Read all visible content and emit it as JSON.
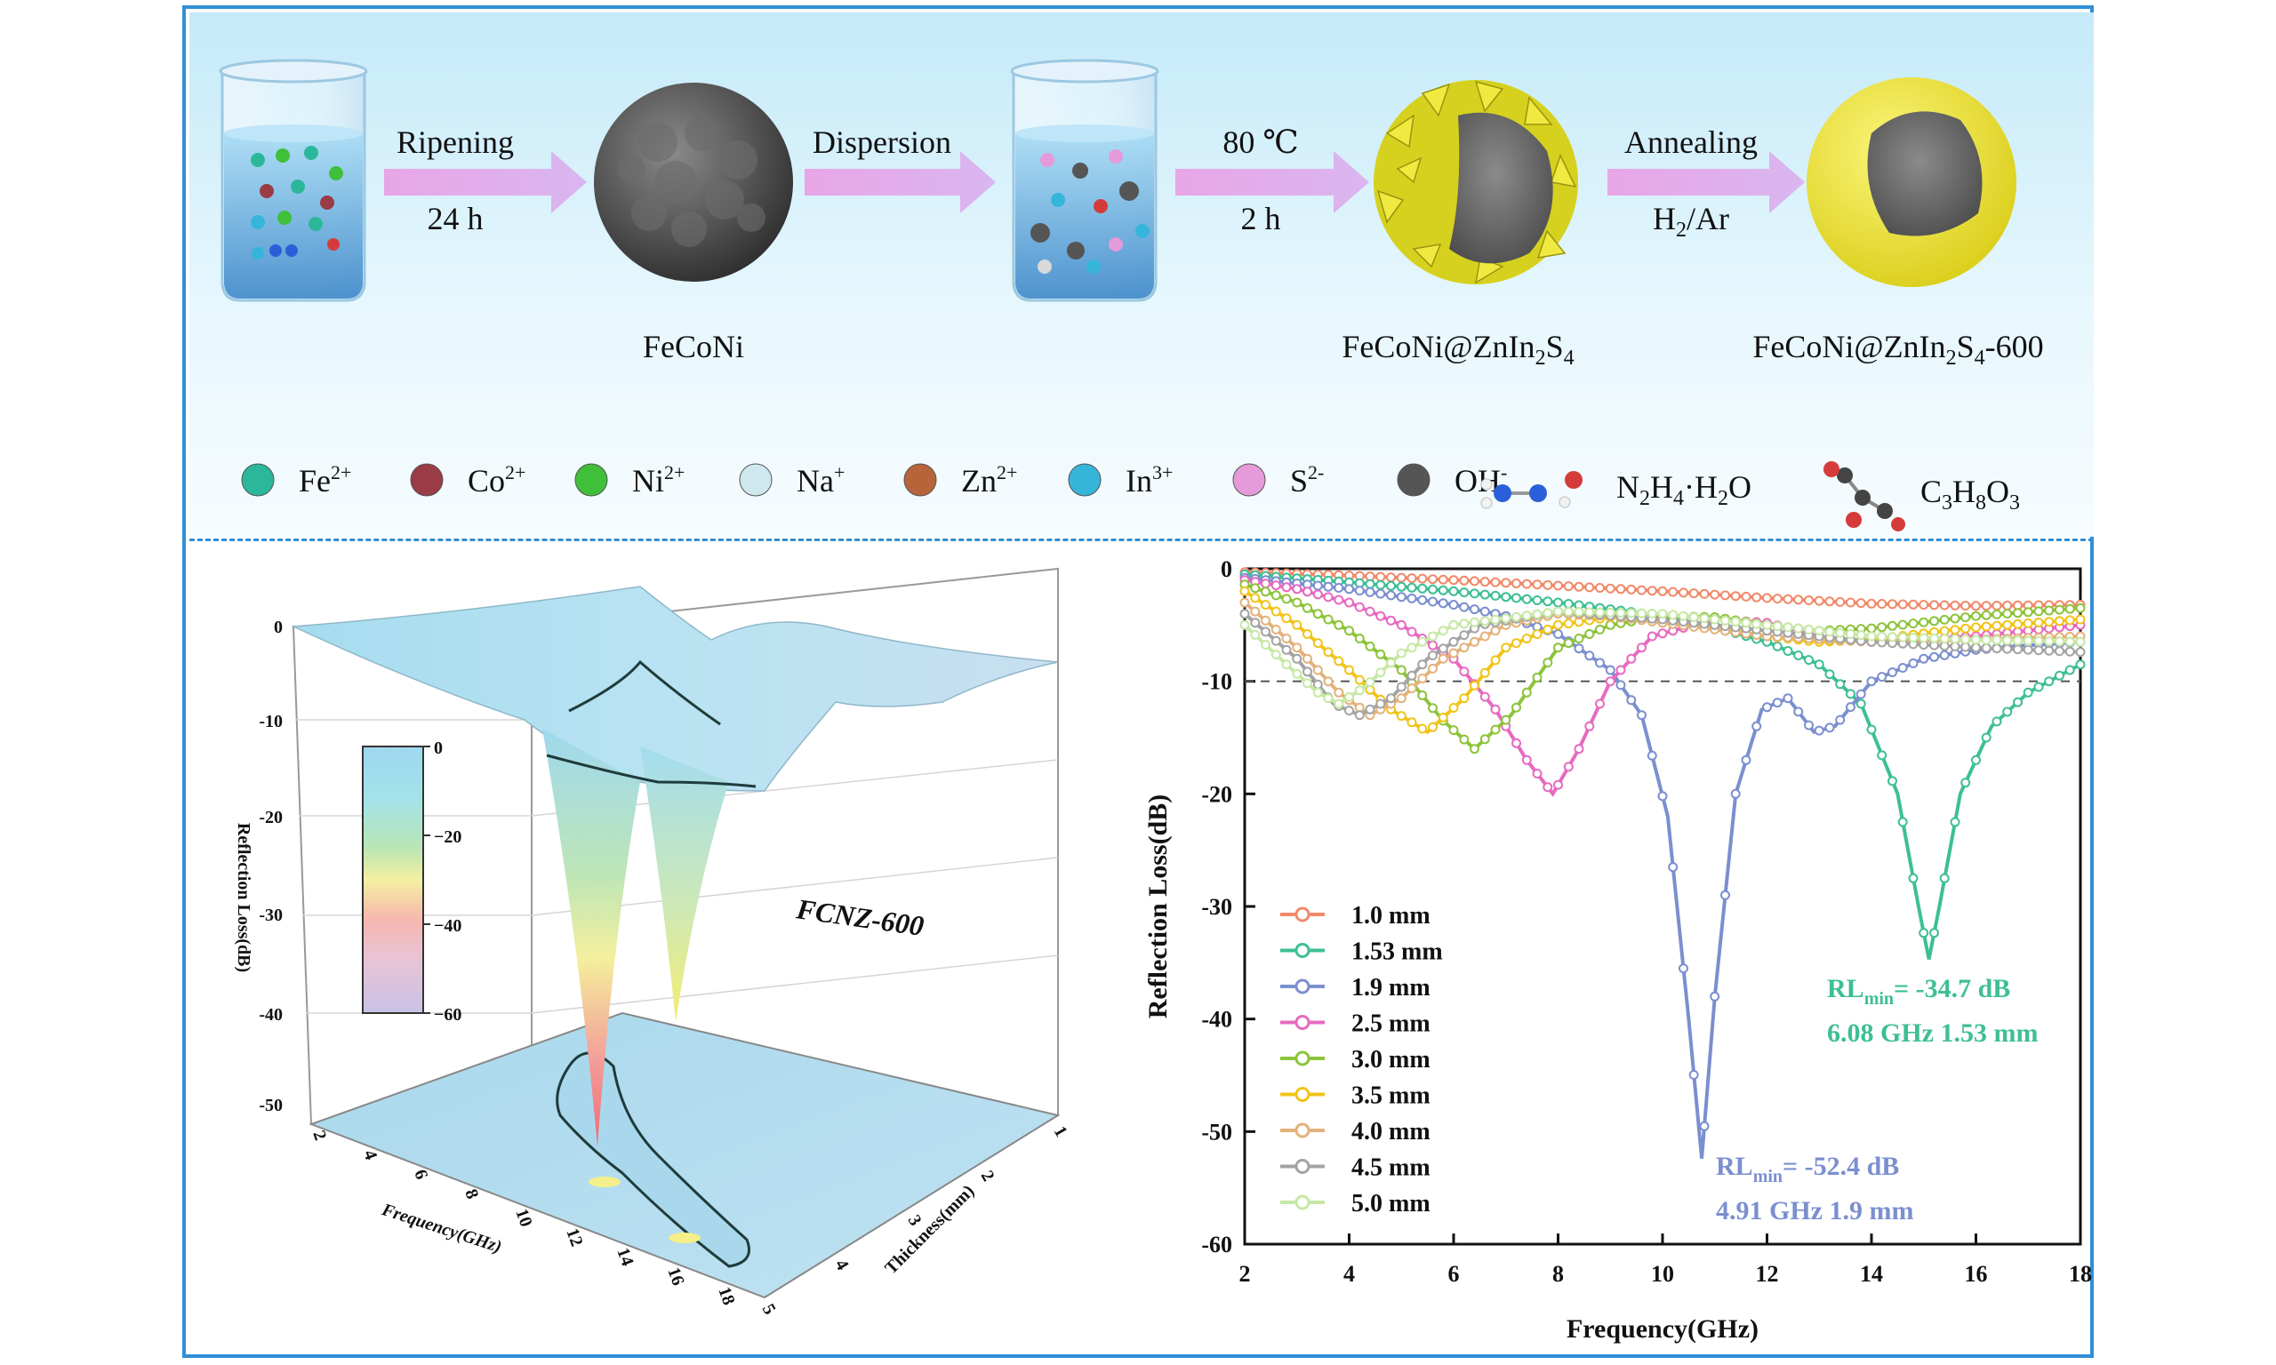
{
  "scheme": {
    "steps": [
      {
        "top": "Ripening",
        "bottom": "24 h"
      },
      {
        "top": "Dispersion",
        "bottom": ""
      },
      {
        "top": "80 ℃",
        "bottom": "2 h"
      },
      {
        "top": "Annealing",
        "bottom": "H2/Ar"
      }
    ],
    "products": [
      "FeCoNi",
      "FeCoNi@ZnIn2S4",
      "FeCoNi@ZnIn2S4-600"
    ],
    "legend": [
      {
        "label": "Fe",
        "sup": "2+",
        "color": "#2bb89a"
      },
      {
        "label": "Co",
        "sup": "2+",
        "color": "#9a3b45"
      },
      {
        "label": "Ni",
        "sup": "2+",
        "color": "#3fbf3a"
      },
      {
        "label": "Na",
        "sup": "+",
        "color": "#cfe8f0"
      },
      {
        "label": "Zn",
        "sup": "2+",
        "color": "#b8643a"
      },
      {
        "label": "In",
        "sup": "3+",
        "color": "#36b5db"
      },
      {
        "label": "S",
        "sup": "2-",
        "color": "#e59ad9"
      },
      {
        "label": "OH",
        "sup": "-",
        "color": "#555555"
      }
    ],
    "molecules": [
      "N2H4·H2O",
      "C3H8O3"
    ]
  },
  "plot3d": {
    "annotation": "FCNZ-600",
    "zlabel": "Reflection Loss(dB)",
    "xlabel": "Frequency(GHz)",
    "ylabel": "Thickness(mm)",
    "zticks": [
      "0",
      "-10",
      "-20",
      "-30",
      "-40",
      "-50"
    ],
    "xticks": [
      "2",
      "4",
      "6",
      "8",
      "10",
      "12",
      "14",
      "16",
      "18"
    ],
    "yticks": [
      "1",
      "2",
      "3",
      "4",
      "5"
    ],
    "colorbar_ticks": [
      "0",
      "−20",
      "−40",
      "−60"
    ]
  },
  "chart_data": {
    "type": "line",
    "xlabel": "Frequency(GHz)",
    "ylabel": "Reflection Loss(dB)",
    "xlim": [
      2,
      18
    ],
    "ylim": [
      -60,
      0
    ],
    "xticks": [
      2,
      4,
      6,
      8,
      10,
      12,
      14,
      16,
      18
    ],
    "yticks": [
      0,
      -10,
      -20,
      -30,
      -40,
      -50,
      -60
    ],
    "reference_line": -10,
    "legend_position": "bottom-left",
    "series": [
      {
        "name": "1.0 mm",
        "color": "#f08a6a",
        "points": [
          [
            2,
            -0.3
          ],
          [
            4,
            -0.6
          ],
          [
            6,
            -1.0
          ],
          [
            8,
            -1.5
          ],
          [
            10,
            -2.0
          ],
          [
            12,
            -2.6
          ],
          [
            14,
            -3.1
          ],
          [
            16,
            -3.3
          ],
          [
            18,
            -3.2
          ]
        ]
      },
      {
        "name": "1.53 mm",
        "color": "#3dbf95",
        "points": [
          [
            2,
            -0.5
          ],
          [
            4,
            -1.2
          ],
          [
            6,
            -2.0
          ],
          [
            8,
            -3.0
          ],
          [
            10,
            -4.2
          ],
          [
            11,
            -5.2
          ],
          [
            12,
            -6.5
          ],
          [
            13,
            -8.5
          ],
          [
            13.8,
            -12
          ],
          [
            14.5,
            -20
          ],
          [
            14.9,
            -30
          ],
          [
            15.1,
            -34.7
          ],
          [
            15.3,
            -30
          ],
          [
            15.7,
            -20
          ],
          [
            16.3,
            -14
          ],
          [
            17,
            -11
          ],
          [
            18,
            -8.5
          ]
        ]
      },
      {
        "name": "1.9 mm",
        "color": "#7b8fcf",
        "points": [
          [
            2,
            -0.8
          ],
          [
            4,
            -1.8
          ],
          [
            6,
            -3.2
          ],
          [
            7,
            -4.2
          ],
          [
            8,
            -5.8
          ],
          [
            9,
            -9
          ],
          [
            9.6,
            -13
          ],
          [
            10.1,
            -22
          ],
          [
            10.5,
            -40
          ],
          [
            10.75,
            -52.4
          ],
          [
            11,
            -38
          ],
          [
            11.4,
            -20
          ],
          [
            11.9,
            -12.5
          ],
          [
            12.4,
            -11.5
          ],
          [
            12.9,
            -14.5
          ],
          [
            13.3,
            -14
          ],
          [
            14,
            -10
          ],
          [
            15,
            -8
          ],
          [
            16,
            -7.2
          ],
          [
            17,
            -6.8
          ],
          [
            18,
            -6.5
          ]
        ]
      },
      {
        "name": "2.5 mm",
        "color": "#e76ac0",
        "points": [
          [
            2,
            -1.0
          ],
          [
            3,
            -1.8
          ],
          [
            4,
            -3
          ],
          [
            5,
            -5
          ],
          [
            6,
            -8
          ],
          [
            6.8,
            -12.5
          ],
          [
            7.4,
            -17
          ],
          [
            7.9,
            -20
          ],
          [
            8.4,
            -16
          ],
          [
            9,
            -10
          ],
          [
            9.8,
            -6
          ],
          [
            11,
            -4.5
          ],
          [
            12,
            -4.8
          ],
          [
            13,
            -6
          ],
          [
            14,
            -6.5
          ],
          [
            16,
            -6
          ],
          [
            18,
            -5
          ]
        ]
      },
      {
        "name": "3.0 mm",
        "color": "#8cc43a",
        "points": [
          [
            2,
            -1.4
          ],
          [
            3,
            -3
          ],
          [
            4,
            -5.5
          ],
          [
            5,
            -9
          ],
          [
            5.8,
            -13.5
          ],
          [
            6.4,
            -16
          ],
          [
            7.1,
            -13
          ],
          [
            8,
            -7
          ],
          [
            9,
            -5
          ],
          [
            10,
            -4.2
          ],
          [
            11,
            -4.3
          ],
          [
            12,
            -5
          ],
          [
            13,
            -5.5
          ],
          [
            14,
            -5.3
          ],
          [
            16,
            -4.2
          ],
          [
            18,
            -3.5
          ]
        ]
      },
      {
        "name": "3.5 mm",
        "color": "#f0c419",
        "points": [
          [
            2,
            -2
          ],
          [
            3,
            -5
          ],
          [
            4,
            -9
          ],
          [
            4.8,
            -12.5
          ],
          [
            5.5,
            -14.5
          ],
          [
            6.2,
            -11.5
          ],
          [
            7,
            -7
          ],
          [
            8,
            -5
          ],
          [
            9,
            -4.3
          ],
          [
            10,
            -4.5
          ],
          [
            11,
            -5.2
          ],
          [
            12,
            -6
          ],
          [
            13,
            -6.5
          ],
          [
            14,
            -6.3
          ],
          [
            16,
            -5.2
          ],
          [
            18,
            -4.5
          ]
        ]
      },
      {
        "name": "4.0 mm",
        "color": "#e3b27a",
        "points": [
          [
            2,
            -3
          ],
          [
            3,
            -7
          ],
          [
            3.8,
            -11
          ],
          [
            4.4,
            -13
          ],
          [
            5,
            -11.5
          ],
          [
            5.8,
            -8
          ],
          [
            7,
            -5
          ],
          [
            8,
            -4
          ],
          [
            9,
            -4.2
          ],
          [
            10,
            -4.8
          ],
          [
            12,
            -6
          ],
          [
            14,
            -6.5
          ],
          [
            16,
            -6.3
          ],
          [
            18,
            -6
          ]
        ]
      },
      {
        "name": "4.5 mm",
        "color": "#a4a4a4",
        "points": [
          [
            2,
            -4
          ],
          [
            3,
            -8
          ],
          [
            3.7,
            -12
          ],
          [
            4.2,
            -13
          ],
          [
            4.8,
            -11.5
          ],
          [
            5.5,
            -8
          ],
          [
            6.5,
            -5
          ],
          [
            8,
            -3.8
          ],
          [
            10,
            -4.5
          ],
          [
            12,
            -5.5
          ],
          [
            14,
            -6.5
          ],
          [
            16,
            -7
          ],
          [
            18,
            -7.4
          ]
        ]
      },
      {
        "name": "5.0 mm",
        "color": "#c6e8a5",
        "points": [
          [
            2,
            -5
          ],
          [
            2.8,
            -8.5
          ],
          [
            3.4,
            -11
          ],
          [
            3.8,
            -12
          ],
          [
            4.3,
            -10.5
          ],
          [
            5,
            -7.5
          ],
          [
            6,
            -5
          ],
          [
            8,
            -3.8
          ],
          [
            10,
            -4
          ],
          [
            12,
            -5
          ],
          [
            14,
            -6
          ],
          [
            16,
            -6.3
          ],
          [
            18,
            -6.5
          ]
        ]
      }
    ],
    "annotations": [
      {
        "line1": "RLmin= -34.7 dB",
        "line2": "6.08 GHz   1.53 mm",
        "color": "#3dbf95"
      },
      {
        "line1": "RLmin= -52.4 dB",
        "line2": "4.91 GHz   1.9 mm",
        "color": "#7b8fcf"
      }
    ]
  }
}
